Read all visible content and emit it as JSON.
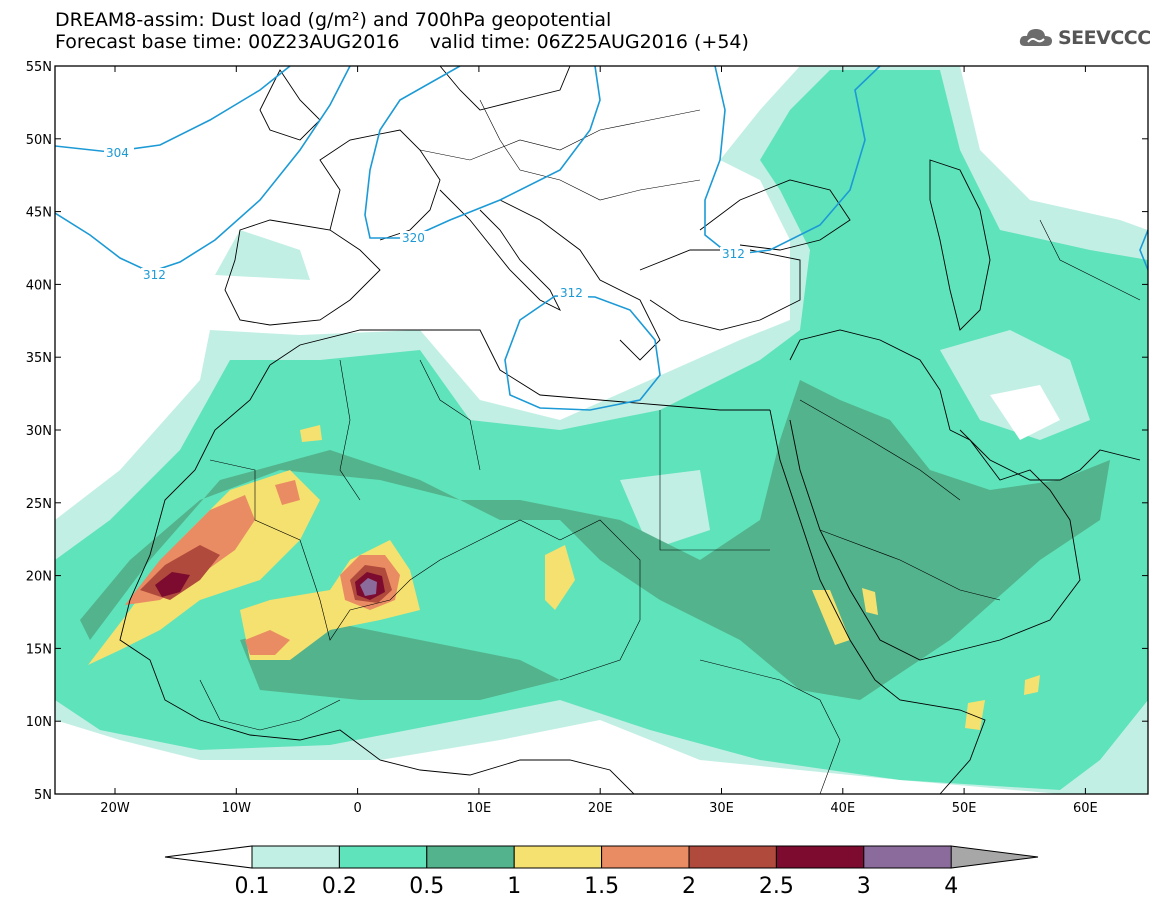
{
  "title": {
    "line1": "DREAM8-assim: Dust load (g/m²) and 700hPa geopotential",
    "line2": "Forecast base time: 00Z23AUG2016     valid time: 06Z25AUG2016 (+54)"
  },
  "logo": {
    "text": "SEEVCCC",
    "icon": "cloud-icon"
  },
  "map": {
    "lat_labels": [
      "55N",
      "50N",
      "45N",
      "40N",
      "35N",
      "30N",
      "25N",
      "20N",
      "15N",
      "10N",
      "5N"
    ],
    "lon_labels": [
      "20W",
      "10W",
      "0",
      "10E",
      "20E",
      "30E",
      "40E",
      "50E",
      "60E"
    ],
    "geopotential_contours": [
      {
        "label": "304"
      },
      {
        "label": "312"
      },
      {
        "label": "320"
      },
      {
        "label": "312"
      },
      {
        "label": "312"
      }
    ],
    "colors": {
      "c0": "#c2efe4",
      "c1": "#5fe3ba",
      "c2": "#52b38d",
      "c3": "#f5e16f",
      "c4": "#ea8c63",
      "c5": "#b04a3c",
      "c6": "#7d0a2f",
      "c7": "#8b6b9c",
      "c8": "#a7a7a7",
      "contour": "#1c9ad6"
    }
  },
  "colorbar": {
    "ticks": [
      "0.1",
      "0.2",
      "0.5",
      "1",
      "1.5",
      "2",
      "2.5",
      "3",
      "4"
    ],
    "colors": [
      "#c2efe4",
      "#5fe3ba",
      "#52b38d",
      "#f5e16f",
      "#ea8c63",
      "#b04a3c",
      "#7d0a2f",
      "#8b6b9c"
    ]
  }
}
